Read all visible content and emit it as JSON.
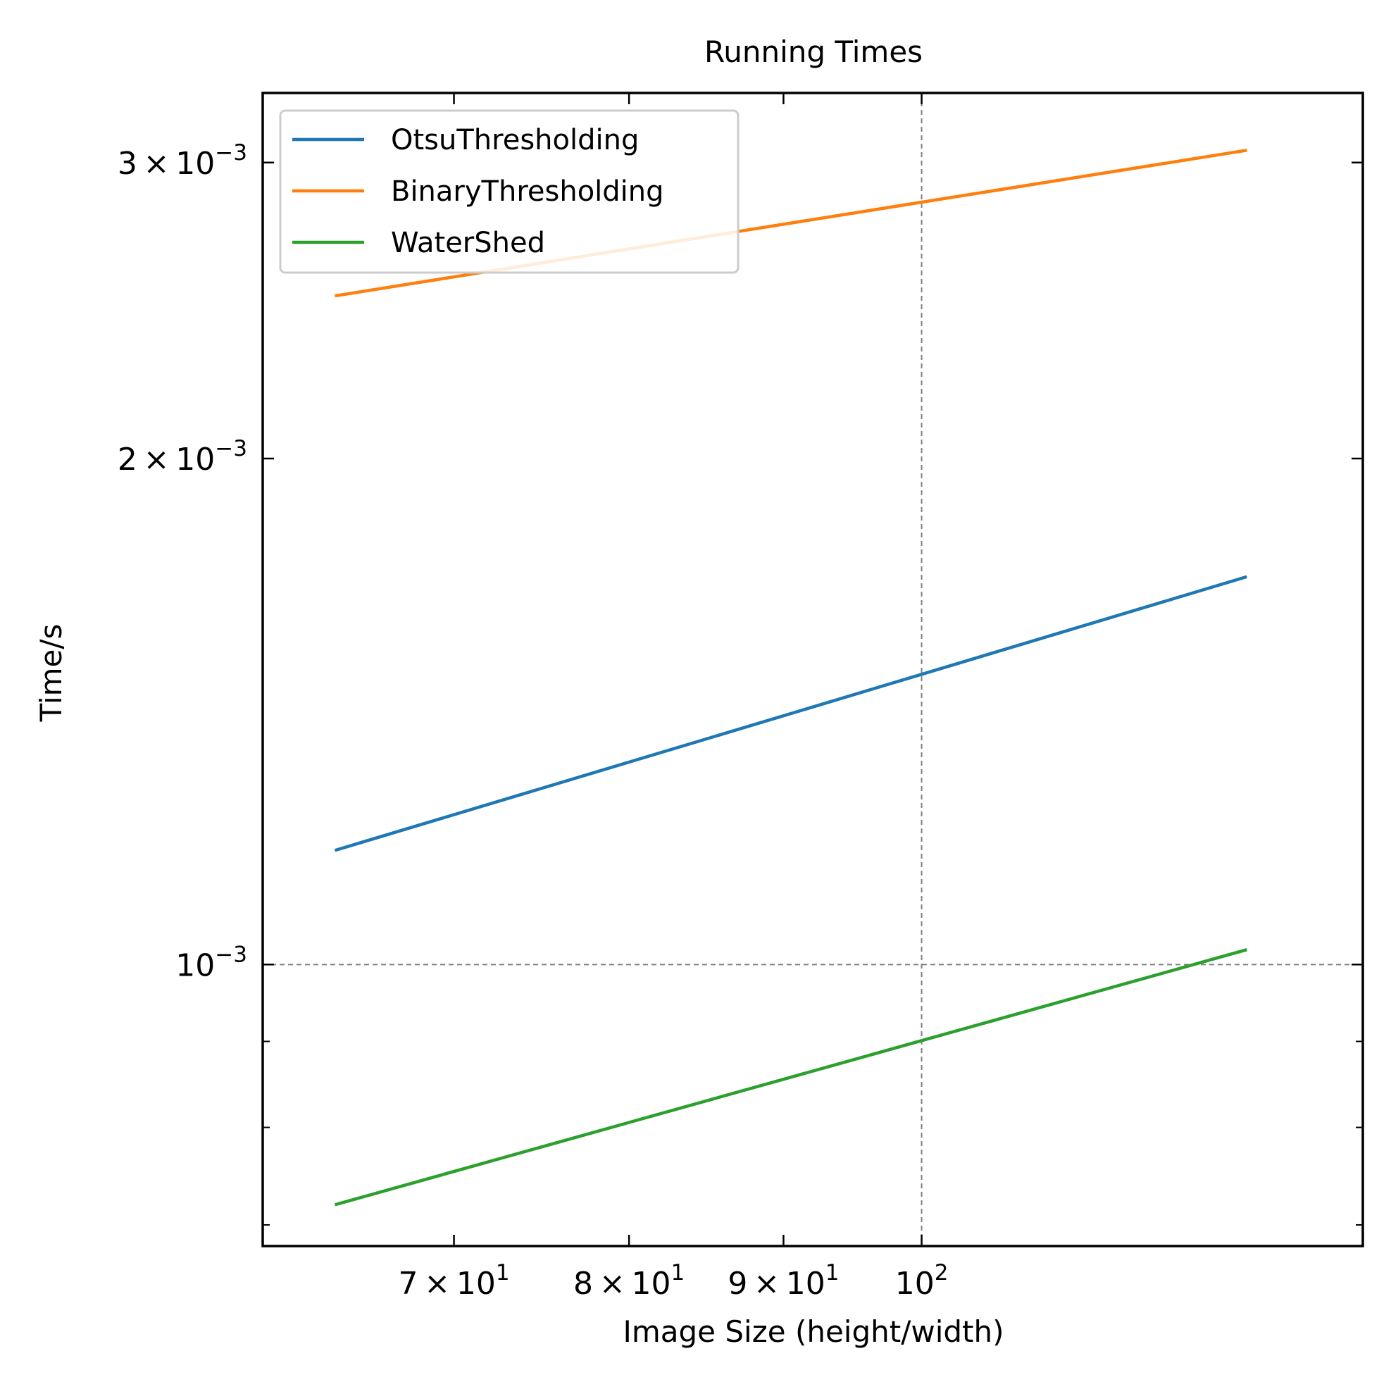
{
  "chart_data": {
    "type": "line",
    "title": "Running Times",
    "xlabel": "Image Size (height/width)",
    "ylabel": "Time/s",
    "xscale": "log",
    "yscale": "log",
    "xlim": [
      60.5,
      140
    ],
    "ylim": [
      0.00068,
      0.0033
    ],
    "grid": "dashed lines at x = 100 and y = 0.001",
    "legend_position": "top-left",
    "x": [
      64,
      128
    ],
    "series": [
      {
        "name": "OtsuThresholding",
        "color": "#1f77b4",
        "values": [
          0.00117,
          0.0017
        ]
      },
      {
        "name": "BinaryThresholding",
        "color": "#ff7f0e",
        "values": [
          0.0025,
          0.00305
        ]
      },
      {
        "name": "WaterShed",
        "color": "#2ca02c",
        "values": [
          0.00072,
          0.00102
        ]
      }
    ],
    "xticks": [
      {
        "value": 70,
        "mant": "7",
        "base": "10",
        "exp": "1"
      },
      {
        "value": 80,
        "mant": "8",
        "base": "10",
        "exp": "1"
      },
      {
        "value": 90,
        "mant": "9",
        "base": "10",
        "exp": "1"
      },
      {
        "value": 100,
        "mant": "",
        "base": "10",
        "exp": "2"
      }
    ],
    "yticks": [
      {
        "value": 0.003,
        "mant": "3",
        "base": "10",
        "exp": "−3"
      },
      {
        "value": 0.002,
        "mant": "2",
        "base": "10",
        "exp": "−3"
      },
      {
        "value": 0.001,
        "mant": "",
        "base": "10",
        "exp": "−3"
      }
    ],
    "y_minor_ticks": [
      0.0009,
      0.0008,
      0.0007
    ],
    "reference_lines": {
      "x": 100,
      "y": 0.001
    },
    "times_symbol": "×"
  }
}
